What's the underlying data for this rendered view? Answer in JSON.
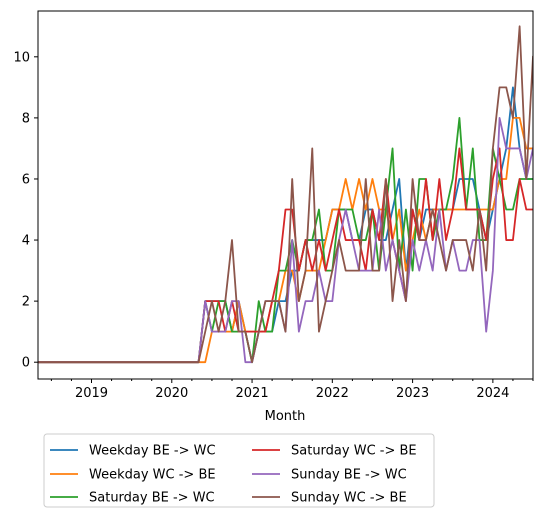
{
  "chart_data": {
    "type": "line",
    "xlabel": "Month",
    "ylabel": "",
    "x_ticks": [
      "2019",
      "2020",
      "2021",
      "2022",
      "2023",
      "2024"
    ],
    "y_ticks": [
      0,
      2,
      4,
      6,
      8,
      10
    ],
    "xlim": [
      "2018-05",
      "2024-07"
    ],
    "ylim": [
      -0.55,
      11.5
    ],
    "grid": false,
    "legend_position": "below",
    "x": [
      "2018-05",
      "2018-06",
      "2018-07",
      "2018-08",
      "2018-09",
      "2018-10",
      "2018-11",
      "2018-12",
      "2019-01",
      "2019-02",
      "2019-03",
      "2019-04",
      "2019-05",
      "2019-06",
      "2019-07",
      "2019-08",
      "2019-09",
      "2019-10",
      "2019-11",
      "2019-12",
      "2020-01",
      "2020-02",
      "2020-03",
      "2020-04",
      "2020-05",
      "2020-06",
      "2020-07",
      "2020-08",
      "2020-09",
      "2020-10",
      "2020-11",
      "2020-12",
      "2021-01",
      "2021-02",
      "2021-03",
      "2021-04",
      "2021-05",
      "2021-06",
      "2021-07",
      "2021-08",
      "2021-09",
      "2021-10",
      "2021-11",
      "2021-12",
      "2022-01",
      "2022-02",
      "2022-03",
      "2022-04",
      "2022-05",
      "2022-06",
      "2022-07",
      "2022-08",
      "2022-09",
      "2022-10",
      "2022-11",
      "2022-12",
      "2023-01",
      "2023-02",
      "2023-03",
      "2023-04",
      "2023-05",
      "2023-06",
      "2023-07",
      "2023-08",
      "2023-09",
      "2023-10",
      "2023-11",
      "2023-12",
      "2024-01",
      "2024-02",
      "2024-03",
      "2024-04",
      "2024-05",
      "2024-06",
      "2024-07"
    ],
    "series": [
      {
        "name": "Weekday BE -> WC",
        "color": "#1f77b4",
        "values": [
          0,
          0,
          0,
          0,
          0,
          0,
          0,
          0,
          0,
          0,
          0,
          0,
          0,
          0,
          0,
          0,
          0,
          0,
          0,
          0,
          0,
          0,
          0,
          0,
          0,
          2,
          2,
          2,
          2,
          1,
          2,
          1,
          0,
          1,
          1,
          1,
          2,
          2,
          3,
          3,
          4,
          4,
          4,
          4,
          5,
          5,
          5,
          4,
          4,
          5,
          5,
          4,
          4,
          5,
          6,
          3,
          5,
          4,
          5,
          5,
          5,
          5,
          5,
          6,
          6,
          6,
          5,
          4,
          5,
          6,
          7,
          9,
          7,
          6,
          6
        ]
      },
      {
        "name": "Weekday WC -> BE",
        "color": "#ff7f0e",
        "values": [
          0,
          0,
          0,
          0,
          0,
          0,
          0,
          0,
          0,
          0,
          0,
          0,
          0,
          0,
          0,
          0,
          0,
          0,
          0,
          0,
          0,
          0,
          0,
          0,
          0,
          0,
          1,
          1,
          1,
          1,
          2,
          1,
          1,
          1,
          1,
          2,
          2,
          3,
          3,
          2,
          3,
          3,
          3,
          4,
          5,
          5,
          6,
          5,
          6,
          5,
          6,
          5,
          5,
          4,
          5,
          3,
          4,
          5,
          4,
          5,
          5,
          5,
          5,
          5,
          5,
          5,
          5,
          5,
          5,
          6,
          6,
          8,
          8,
          7,
          7
        ]
      },
      {
        "name": "Saturday BE -> WC",
        "color": "#2ca02c",
        "values": [
          0,
          0,
          0,
          0,
          0,
          0,
          0,
          0,
          0,
          0,
          0,
          0,
          0,
          0,
          0,
          0,
          0,
          0,
          0,
          0,
          0,
          0,
          0,
          0,
          0,
          2,
          1,
          2,
          2,
          1,
          1,
          1,
          0,
          2,
          1,
          1,
          3,
          3,
          4,
          3,
          4,
          4,
          5,
          3,
          3,
          5,
          5,
          5,
          4,
          4,
          5,
          3,
          5,
          7,
          3,
          5,
          3,
          6,
          6,
          4,
          5,
          5,
          6,
          8,
          5,
          7,
          4,
          4,
          7,
          6,
          5,
          5,
          6,
          6,
          6
        ]
      },
      {
        "name": "Saturday WC -> BE",
        "color": "#d62728",
        "values": [
          0,
          0,
          0,
          0,
          0,
          0,
          0,
          0,
          0,
          0,
          0,
          0,
          0,
          0,
          0,
          0,
          0,
          0,
          0,
          0,
          0,
          0,
          0,
          0,
          0,
          2,
          2,
          2,
          1,
          2,
          1,
          1,
          1,
          1,
          1,
          2,
          3,
          5,
          5,
          3,
          4,
          3,
          4,
          3,
          4,
          5,
          4,
          4,
          4,
          3,
          5,
          4,
          6,
          4,
          3,
          2,
          5,
          4,
          6,
          4,
          6,
          4,
          5,
          7,
          5,
          5,
          5,
          4,
          6,
          7,
          4,
          4,
          6,
          5,
          5
        ]
      },
      {
        "name": "Sunday BE -> WC",
        "color": "#9467bd",
        "values": [
          0,
          0,
          0,
          0,
          0,
          0,
          0,
          0,
          0,
          0,
          0,
          0,
          0,
          0,
          0,
          0,
          0,
          0,
          0,
          0,
          0,
          0,
          0,
          0,
          0,
          2,
          1,
          1,
          1,
          2,
          2,
          0,
          0,
          1,
          2,
          2,
          2,
          1,
          4,
          1,
          2,
          2,
          3,
          2,
          2,
          4,
          5,
          4,
          3,
          3,
          3,
          5,
          3,
          4,
          3,
          2,
          4,
          3,
          4,
          3,
          5,
          3,
          4,
          3,
          3,
          4,
          4,
          1,
          3,
          8,
          7,
          7,
          7,
          6,
          7
        ]
      },
      {
        "name": "Sunday WC -> BE",
        "color": "#8c564b",
        "values": [
          0,
          0,
          0,
          0,
          0,
          0,
          0,
          0,
          0,
          0,
          0,
          0,
          0,
          0,
          0,
          0,
          0,
          0,
          0,
          0,
          0,
          0,
          0,
          0,
          0,
          1,
          2,
          1,
          2,
          4,
          1,
          1,
          0,
          1,
          2,
          2,
          2,
          1,
          6,
          2,
          3,
          7,
          1,
          2,
          3,
          4,
          3,
          3,
          3,
          6,
          3,
          3,
          6,
          2,
          4,
          2,
          6,
          4,
          4,
          5,
          4,
          3,
          4,
          4,
          4,
          3,
          5,
          3,
          7,
          9,
          9,
          8,
          11,
          6,
          10
        ]
      }
    ]
  }
}
